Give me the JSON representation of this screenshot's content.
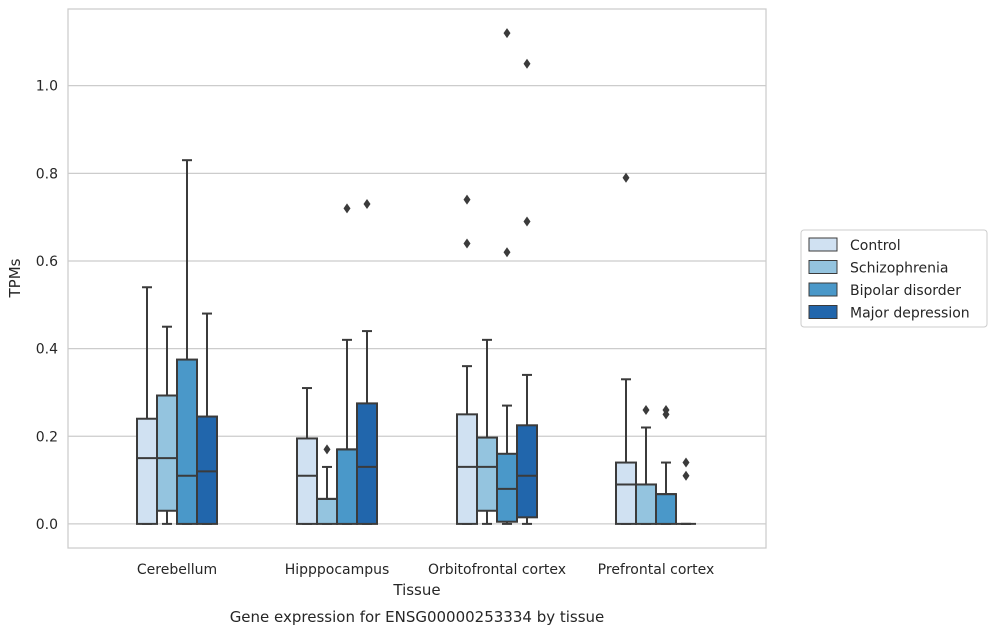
{
  "chart_data": {
    "type": "box",
    "title": "",
    "caption": "Gene expression for ENSG00000253334 by tissue",
    "xlabel": "Tissue",
    "ylabel": "TPMs",
    "ylim": [
      -0.055,
      1.175
    ],
    "yticks": [
      0.0,
      0.2,
      0.4,
      0.6,
      0.8,
      1.0
    ],
    "ytick_labels": [
      "0.0",
      "0.2",
      "0.4",
      "0.6",
      "0.8",
      "1.0"
    ],
    "grid": "horizontal",
    "legend_position": "right",
    "categories": [
      "Cerebellum",
      "Hipppocampus",
      "Orbitofrontal cortex",
      "Prefrontal cortex"
    ],
    "series": [
      {
        "name": "Control",
        "color": "#d0e1f2",
        "boxes": [
          {
            "whislo": 0.0,
            "q1": 0.0,
            "med": 0.15,
            "q3": 0.24,
            "whishi": 0.54,
            "fliers": []
          },
          {
            "whislo": 0.0,
            "q1": 0.0,
            "med": 0.11,
            "q3": 0.195,
            "whishi": 0.31,
            "fliers": []
          },
          {
            "whislo": 0.0,
            "q1": 0.0,
            "med": 0.13,
            "q3": 0.25,
            "whishi": 0.36,
            "fliers": [
              0.64,
              0.74
            ]
          },
          {
            "whislo": 0.0,
            "q1": 0.0,
            "med": 0.09,
            "q3": 0.14,
            "whishi": 0.33,
            "fliers": [
              0.79
            ]
          }
        ]
      },
      {
        "name": "Schizophrenia",
        "color": "#94c4df",
        "boxes": [
          {
            "whislo": 0.0,
            "q1": 0.03,
            "med": 0.15,
            "q3": 0.293,
            "whishi": 0.45,
            "fliers": []
          },
          {
            "whislo": 0.0,
            "q1": 0.0,
            "med": 0.057,
            "q3": 0.057,
            "whishi": 0.13,
            "fliers": [
              0.17
            ]
          },
          {
            "whislo": 0.0,
            "q1": 0.03,
            "med": 0.13,
            "q3": 0.197,
            "whishi": 0.42,
            "fliers": []
          },
          {
            "whislo": 0.0,
            "q1": 0.0,
            "med": 0.09,
            "q3": 0.09,
            "whishi": 0.22,
            "fliers": [
              0.26
            ]
          }
        ]
      },
      {
        "name": "Bipolar disorder",
        "color": "#4a98c9",
        "boxes": [
          {
            "whislo": 0.0,
            "q1": 0.0,
            "med": 0.11,
            "q3": 0.375,
            "whishi": 0.83,
            "fliers": []
          },
          {
            "whislo": 0.0,
            "q1": 0.0,
            "med": 0.17,
            "q3": 0.17,
            "whishi": 0.42,
            "fliers": [
              0.72
            ]
          },
          {
            "whislo": 0.0,
            "q1": 0.005,
            "med": 0.08,
            "q3": 0.16,
            "whishi": 0.27,
            "fliers": [
              0.62,
              1.12
            ]
          },
          {
            "whislo": 0.0,
            "q1": 0.0,
            "med": 0.068,
            "q3": 0.068,
            "whishi": 0.14,
            "fliers": [
              0.25,
              0.26
            ]
          }
        ]
      },
      {
        "name": "Major depression",
        "color": "#2166ac",
        "boxes": [
          {
            "whislo": 0.0,
            "q1": 0.0,
            "med": 0.12,
            "q3": 0.245,
            "whishi": 0.48,
            "fliers": []
          },
          {
            "whislo": 0.0,
            "q1": 0.0,
            "med": 0.13,
            "q3": 0.275,
            "whishi": 0.44,
            "fliers": [
              0.73
            ]
          },
          {
            "whislo": 0.0,
            "q1": 0.015,
            "med": 0.11,
            "q3": 0.225,
            "whishi": 0.34,
            "fliers": [
              0.69,
              1.05
            ]
          },
          {
            "whislo": 0.0,
            "q1": 0.0,
            "med": 0.0,
            "q3": 0.0,
            "whishi": 0.0,
            "fliers": [
              0.11,
              0.14
            ]
          }
        ]
      }
    ]
  }
}
